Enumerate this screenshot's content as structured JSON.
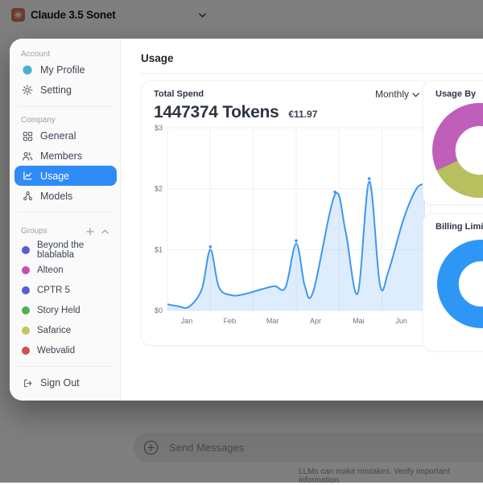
{
  "topbar": {
    "title": "Claude 3.5 Sonet"
  },
  "sidebar": {
    "account_label": "Account",
    "company_label": "Company",
    "groups_label": "Groups",
    "items": {
      "profile": "My Profile",
      "setting": "Setting",
      "general": "General",
      "members": "Members",
      "usage": "Usage",
      "models": "Models",
      "sign_out": "Sign Out"
    },
    "groups": [
      {
        "label": "Beyond the blablabla",
        "color": "#5a5cd6"
      },
      {
        "label": "Alteon",
        "color": "#c14fb7"
      },
      {
        "label": "CPTR 5",
        "color": "#5a5cd6"
      },
      {
        "label": "Story Held",
        "color": "#4db158"
      },
      {
        "label": "Safarice",
        "color": "#c5c457"
      },
      {
        "label": "Webvalid",
        "color": "#d04f4f"
      }
    ],
    "accent_selected": "#2f8bf7",
    "profile_dot_color": "#45b3c9"
  },
  "main": {
    "title": "Usage",
    "total_spend": {
      "label": "Total Spend",
      "tokens": "1447374 Tokens",
      "amount": "€11.97",
      "period": "Monthly"
    },
    "usage_by": {
      "label": "Usage By"
    },
    "billing": {
      "label": "Billing Limit"
    }
  },
  "chat": {
    "placeholder": "Send Messages",
    "disclaimer": "LLMs can make mistakes. Verify important information."
  },
  "chart_data": [
    {
      "type": "line",
      "title": "Total Spend",
      "x_tick_labels": [
        "Jan",
        "Feb",
        "Mar",
        "Apr",
        "Mai",
        "Jun"
      ],
      "y_tick_labels": [
        "$0",
        "$1",
        "$2",
        "$3"
      ],
      "ylim": [
        0,
        3
      ],
      "x_bands": 6,
      "grid": true,
      "line_color": "#3e97f2",
      "fill_color": "rgba(62,151,242,0.17)",
      "tick_color": "#6b7484",
      "grid_color": "#eef1f5",
      "points": [
        {
          "x": 0.0,
          "y": 0.1
        },
        {
          "x": 0.25,
          "y": 0.07
        },
        {
          "x": 0.5,
          "y": 0.06
        },
        {
          "x": 0.8,
          "y": 0.35
        },
        {
          "x": 1.0,
          "y": 1.0,
          "dot": true
        },
        {
          "x": 1.2,
          "y": 0.38
        },
        {
          "x": 1.5,
          "y": 0.25
        },
        {
          "x": 1.8,
          "y": 0.27
        },
        {
          "x": 2.2,
          "y": 0.35
        },
        {
          "x": 2.5,
          "y": 0.4
        },
        {
          "x": 2.75,
          "y": 0.38
        },
        {
          "x": 3.0,
          "y": 1.1,
          "dot": true
        },
        {
          "x": 3.2,
          "y": 0.4
        },
        {
          "x": 3.4,
          "y": 0.32
        },
        {
          "x": 3.9,
          "y": 1.9,
          "dot": true
        },
        {
          "x": 4.15,
          "y": 1.3
        },
        {
          "x": 4.43,
          "y": 0.28
        },
        {
          "x": 4.7,
          "y": 2.12,
          "dot": true
        },
        {
          "x": 4.95,
          "y": 0.42
        },
        {
          "x": 5.15,
          "y": 0.65
        },
        {
          "x": 5.5,
          "y": 1.5
        },
        {
          "x": 5.8,
          "y": 2.0
        },
        {
          "x": 6.0,
          "y": 2.08,
          "dot": true
        }
      ]
    },
    {
      "type": "donut",
      "title": "Usage By",
      "hole_pct": 51,
      "segments": [
        {
          "color": "#bf5fba",
          "from": 0,
          "to": 60
        },
        {
          "color": "#ffffff",
          "from": 60,
          "to": 150
        },
        {
          "color": "#b7bf5e",
          "from": 150,
          "to": 245
        },
        {
          "color": "#bf5fba",
          "from": 245,
          "to": 360
        }
      ]
    },
    {
      "type": "donut",
      "title": "Billing Limit",
      "hole_pct": 51,
      "segments": [
        {
          "color": "#2e96f5",
          "from": 0,
          "to": 360
        }
      ]
    }
  ]
}
